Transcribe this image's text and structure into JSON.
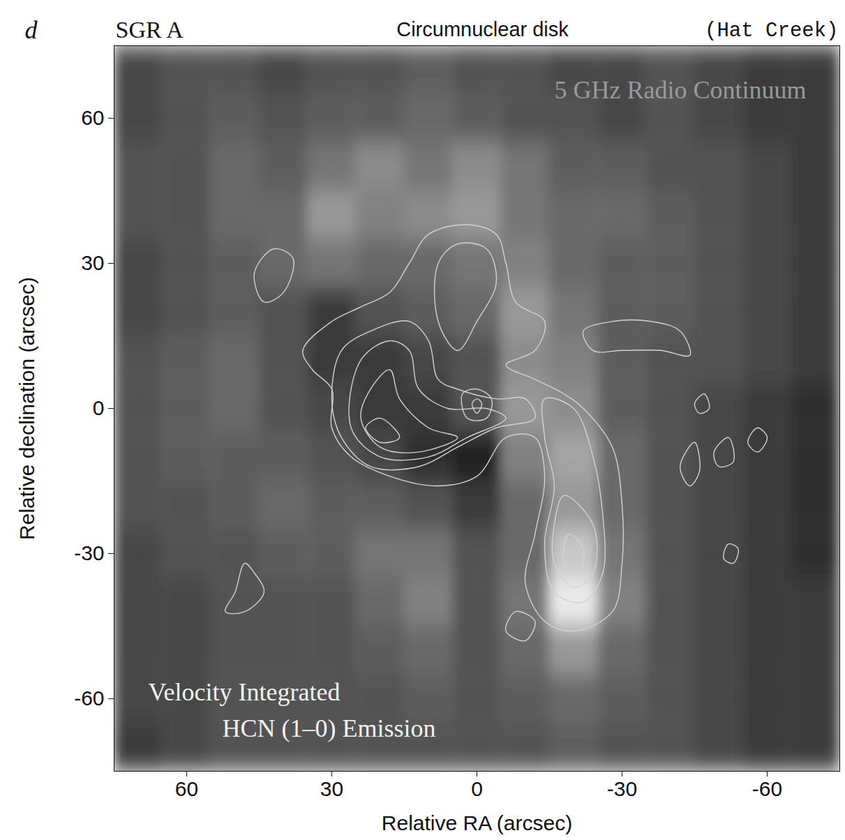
{
  "chart_data": {
    "type": "image",
    "panel_label": "d",
    "title": "SGR A",
    "subtitle": "Circumnuclear disk",
    "source": "(Hat Creek)",
    "x_label": "Relative RA (arcsec)",
    "y_label": "Relative declination (arcsec)",
    "xlim": [
      75,
      -75
    ],
    "ylim": [
      -75,
      75
    ],
    "xticks": [
      60,
      30,
      0,
      -30,
      -60
    ],
    "yticks": [
      -60,
      -30,
      0,
      30,
      60
    ],
    "image": {
      "name": "5 GHz Radio Continuum",
      "x": [
        70,
        60,
        50,
        40,
        30,
        20,
        10,
        0,
        -10,
        -20,
        -30,
        -40,
        -50,
        -60,
        -70
      ],
      "y": [
        70,
        60,
        50,
        40,
        30,
        20,
        10,
        0,
        -10,
        -20,
        -30,
        -40,
        -50,
        -60,
        -70
      ],
      "intensity_range": [
        0,
        1
      ],
      "intensity": [
        [
          0.25,
          0.3,
          0.3,
          0.25,
          0.3,
          0.3,
          0.35,
          0.3,
          0.3,
          0.25,
          0.25,
          0.3,
          0.25,
          0.2,
          0.2
        ],
        [
          0.25,
          0.3,
          0.35,
          0.3,
          0.35,
          0.35,
          0.4,
          0.35,
          0.3,
          0.3,
          0.25,
          0.3,
          0.25,
          0.2,
          0.2
        ],
        [
          0.3,
          0.3,
          0.4,
          0.35,
          0.45,
          0.55,
          0.45,
          0.55,
          0.45,
          0.35,
          0.35,
          0.3,
          0.3,
          0.25,
          0.2
        ],
        [
          0.3,
          0.3,
          0.4,
          0.4,
          0.6,
          0.5,
          0.55,
          0.6,
          0.45,
          0.4,
          0.4,
          0.35,
          0.3,
          0.25,
          0.2
        ],
        [
          0.25,
          0.3,
          0.35,
          0.4,
          0.45,
          0.4,
          0.4,
          0.45,
          0.5,
          0.4,
          0.35,
          0.35,
          0.3,
          0.25,
          0.2
        ],
        [
          0.25,
          0.3,
          0.35,
          0.3,
          0.2,
          0.3,
          0.35,
          0.4,
          0.6,
          0.45,
          0.35,
          0.35,
          0.3,
          0.25,
          0.2
        ],
        [
          0.3,
          0.35,
          0.4,
          0.3,
          0.2,
          0.2,
          0.25,
          0.3,
          0.55,
          0.5,
          0.35,
          0.3,
          0.3,
          0.25,
          0.2
        ],
        [
          0.3,
          0.35,
          0.4,
          0.3,
          0.25,
          0.2,
          0.2,
          0.3,
          0.6,
          0.55,
          0.35,
          0.3,
          0.25,
          0.2,
          0.15
        ],
        [
          0.3,
          0.35,
          0.35,
          0.35,
          0.3,
          0.25,
          0.15,
          0.1,
          0.5,
          0.65,
          0.4,
          0.3,
          0.25,
          0.2,
          0.15
        ],
        [
          0.3,
          0.3,
          0.35,
          0.4,
          0.35,
          0.35,
          0.3,
          0.2,
          0.4,
          0.6,
          0.4,
          0.3,
          0.25,
          0.2,
          0.15
        ],
        [
          0.25,
          0.3,
          0.3,
          0.35,
          0.35,
          0.45,
          0.45,
          0.3,
          0.4,
          0.8,
          0.45,
          0.3,
          0.25,
          0.2,
          0.15
        ],
        [
          0.25,
          0.25,
          0.3,
          0.3,
          0.3,
          0.4,
          0.5,
          0.3,
          0.45,
          0.95,
          0.5,
          0.3,
          0.25,
          0.2,
          0.2
        ],
        [
          0.25,
          0.25,
          0.3,
          0.3,
          0.3,
          0.35,
          0.4,
          0.3,
          0.4,
          0.6,
          0.4,
          0.3,
          0.25,
          0.2,
          0.2
        ],
        [
          0.25,
          0.25,
          0.3,
          0.3,
          0.3,
          0.3,
          0.35,
          0.3,
          0.35,
          0.4,
          0.35,
          0.3,
          0.25,
          0.2,
          0.2
        ],
        [
          0.2,
          0.25,
          0.3,
          0.3,
          0.3,
          0.3,
          0.3,
          0.3,
          0.3,
          0.35,
          0.3,
          0.3,
          0.25,
          0.2,
          0.2
        ]
      ]
    },
    "contour_label": [
      "Velocity Integrated",
      "HCN (1–0) Emission"
    ],
    "color": "#d2d2d2",
    "contours": [
      {
        "points": [
          [
            36,
            12
          ],
          [
            30,
            18
          ],
          [
            24,
            21
          ],
          [
            18,
            24
          ],
          [
            14,
            30
          ],
          [
            10,
            36
          ],
          [
            2,
            38
          ],
          [
            -4,
            36
          ],
          [
            -6,
            30
          ],
          [
            -8,
            22
          ],
          [
            -14,
            18
          ],
          [
            -12,
            12
          ],
          [
            -6,
            9
          ],
          [
            -12,
            6
          ],
          [
            -18,
            3
          ],
          [
            -22,
            0
          ],
          [
            -28,
            -8
          ],
          [
            -30,
            -20
          ],
          [
            -30,
            -32
          ],
          [
            -28,
            -42
          ],
          [
            -20,
            -46
          ],
          [
            -14,
            -44
          ],
          [
            -10,
            -36
          ],
          [
            -12,
            -26
          ],
          [
            -14,
            -14
          ],
          [
            -12,
            -6
          ],
          [
            -6,
            -6
          ],
          [
            0,
            -14
          ],
          [
            8,
            -16
          ],
          [
            18,
            -14
          ],
          [
            26,
            -10
          ],
          [
            30,
            -4
          ],
          [
            30,
            4
          ],
          [
            34,
            8
          ]
        ]
      },
      {
        "points": [
          [
            28,
            12
          ],
          [
            22,
            16
          ],
          [
            14,
            18
          ],
          [
            10,
            14
          ],
          [
            8,
            6
          ],
          [
            4,
            4
          ],
          [
            -4,
            2
          ],
          [
            -10,
            2
          ],
          [
            -12,
            -2
          ],
          [
            -4,
            -4
          ],
          [
            4,
            -8
          ],
          [
            12,
            -12
          ],
          [
            22,
            -12
          ],
          [
            28,
            -6
          ],
          [
            30,
            2
          ]
        ]
      },
      {
        "points": [
          [
            24,
            10
          ],
          [
            18,
            14
          ],
          [
            14,
            12
          ],
          [
            12,
            4
          ],
          [
            6,
            0
          ],
          [
            -2,
            0
          ],
          [
            -6,
            -2
          ],
          [
            2,
            -6
          ],
          [
            10,
            -10
          ],
          [
            20,
            -10
          ],
          [
            26,
            -4
          ]
        ]
      },
      {
        "points": [
          [
            22,
            4
          ],
          [
            18,
            8
          ],
          [
            16,
            2
          ],
          [
            10,
            -4
          ],
          [
            4,
            -6
          ],
          [
            12,
            -9
          ],
          [
            20,
            -8
          ],
          [
            24,
            -2
          ]
        ]
      },
      {
        "points": [
          [
            20,
            -2
          ],
          [
            16,
            -6
          ],
          [
            20,
            -7
          ],
          [
            23,
            -4
          ]
        ]
      },
      {
        "points": [
          [
            8,
            30
          ],
          [
            4,
            34
          ],
          [
            -2,
            33
          ],
          [
            -4,
            26
          ],
          [
            0,
            18
          ],
          [
            4,
            12
          ],
          [
            8,
            18
          ]
        ]
      },
      {
        "points": [
          [
            3,
            3
          ],
          [
            0,
            4
          ],
          [
            -3,
            2
          ],
          [
            -2,
            -2
          ],
          [
            2,
            -2
          ]
        ]
      },
      {
        "points": [
          [
            1,
            1
          ],
          [
            0,
            2
          ],
          [
            -1,
            1
          ],
          [
            0,
            -1
          ]
        ]
      },
      {
        "points": [
          [
            -14,
            2
          ],
          [
            -20,
            0
          ],
          [
            -24,
            -10
          ],
          [
            -26,
            -22
          ],
          [
            -26,
            -34
          ],
          [
            -22,
            -40
          ],
          [
            -16,
            -38
          ],
          [
            -14,
            -28
          ],
          [
            -16,
            -16
          ],
          [
            -14,
            -6
          ]
        ]
      },
      {
        "points": [
          [
            -18,
            -18
          ],
          [
            -24,
            -24
          ],
          [
            -24,
            -34
          ],
          [
            -20,
            -37
          ],
          [
            -16,
            -32
          ],
          [
            -16,
            -24
          ]
        ]
      },
      {
        "points": [
          [
            -19,
            -26
          ],
          [
            -22,
            -29
          ],
          [
            -21,
            -34
          ],
          [
            -18,
            -32
          ]
        ]
      },
      {
        "points": [
          [
            46,
            28
          ],
          [
            42,
            33
          ],
          [
            38,
            31
          ],
          [
            40,
            24
          ],
          [
            44,
            22
          ]
        ]
      },
      {
        "points": [
          [
            -22,
            16
          ],
          [
            -28,
            18
          ],
          [
            -36,
            18
          ],
          [
            -42,
            16
          ],
          [
            -44,
            11
          ],
          [
            -38,
            12
          ],
          [
            -30,
            12
          ],
          [
            -24,
            12
          ]
        ]
      },
      {
        "points": [
          [
            -45,
            -7
          ],
          [
            -46,
            -13
          ],
          [
            -44,
            -16
          ],
          [
            -42,
            -12
          ]
        ]
      },
      {
        "points": [
          [
            -49,
            -9
          ],
          [
            -52,
            -6
          ],
          [
            -53,
            -11
          ],
          [
            -50,
            -12
          ]
        ]
      },
      {
        "points": [
          [
            -56,
            -7
          ],
          [
            -58,
            -4
          ],
          [
            -60,
            -6
          ],
          [
            -58,
            -9
          ]
        ]
      },
      {
        "points": [
          [
            -45,
            1
          ],
          [
            -47,
            3
          ],
          [
            -48,
            0
          ],
          [
            -46,
            -1
          ]
        ]
      },
      {
        "points": [
          [
            -52,
            -28
          ],
          [
            -54,
            -29
          ],
          [
            -53,
            -32
          ],
          [
            -51,
            -31
          ]
        ]
      },
      {
        "points": [
          [
            50,
            -38
          ],
          [
            48,
            -32
          ],
          [
            46,
            -34
          ],
          [
            44,
            -38
          ],
          [
            48,
            -42
          ],
          [
            52,
            -42
          ]
        ]
      },
      {
        "points": [
          [
            -8,
            -42
          ],
          [
            -12,
            -44
          ],
          [
            -10,
            -48
          ],
          [
            -6,
            -46
          ]
        ]
      }
    ]
  }
}
